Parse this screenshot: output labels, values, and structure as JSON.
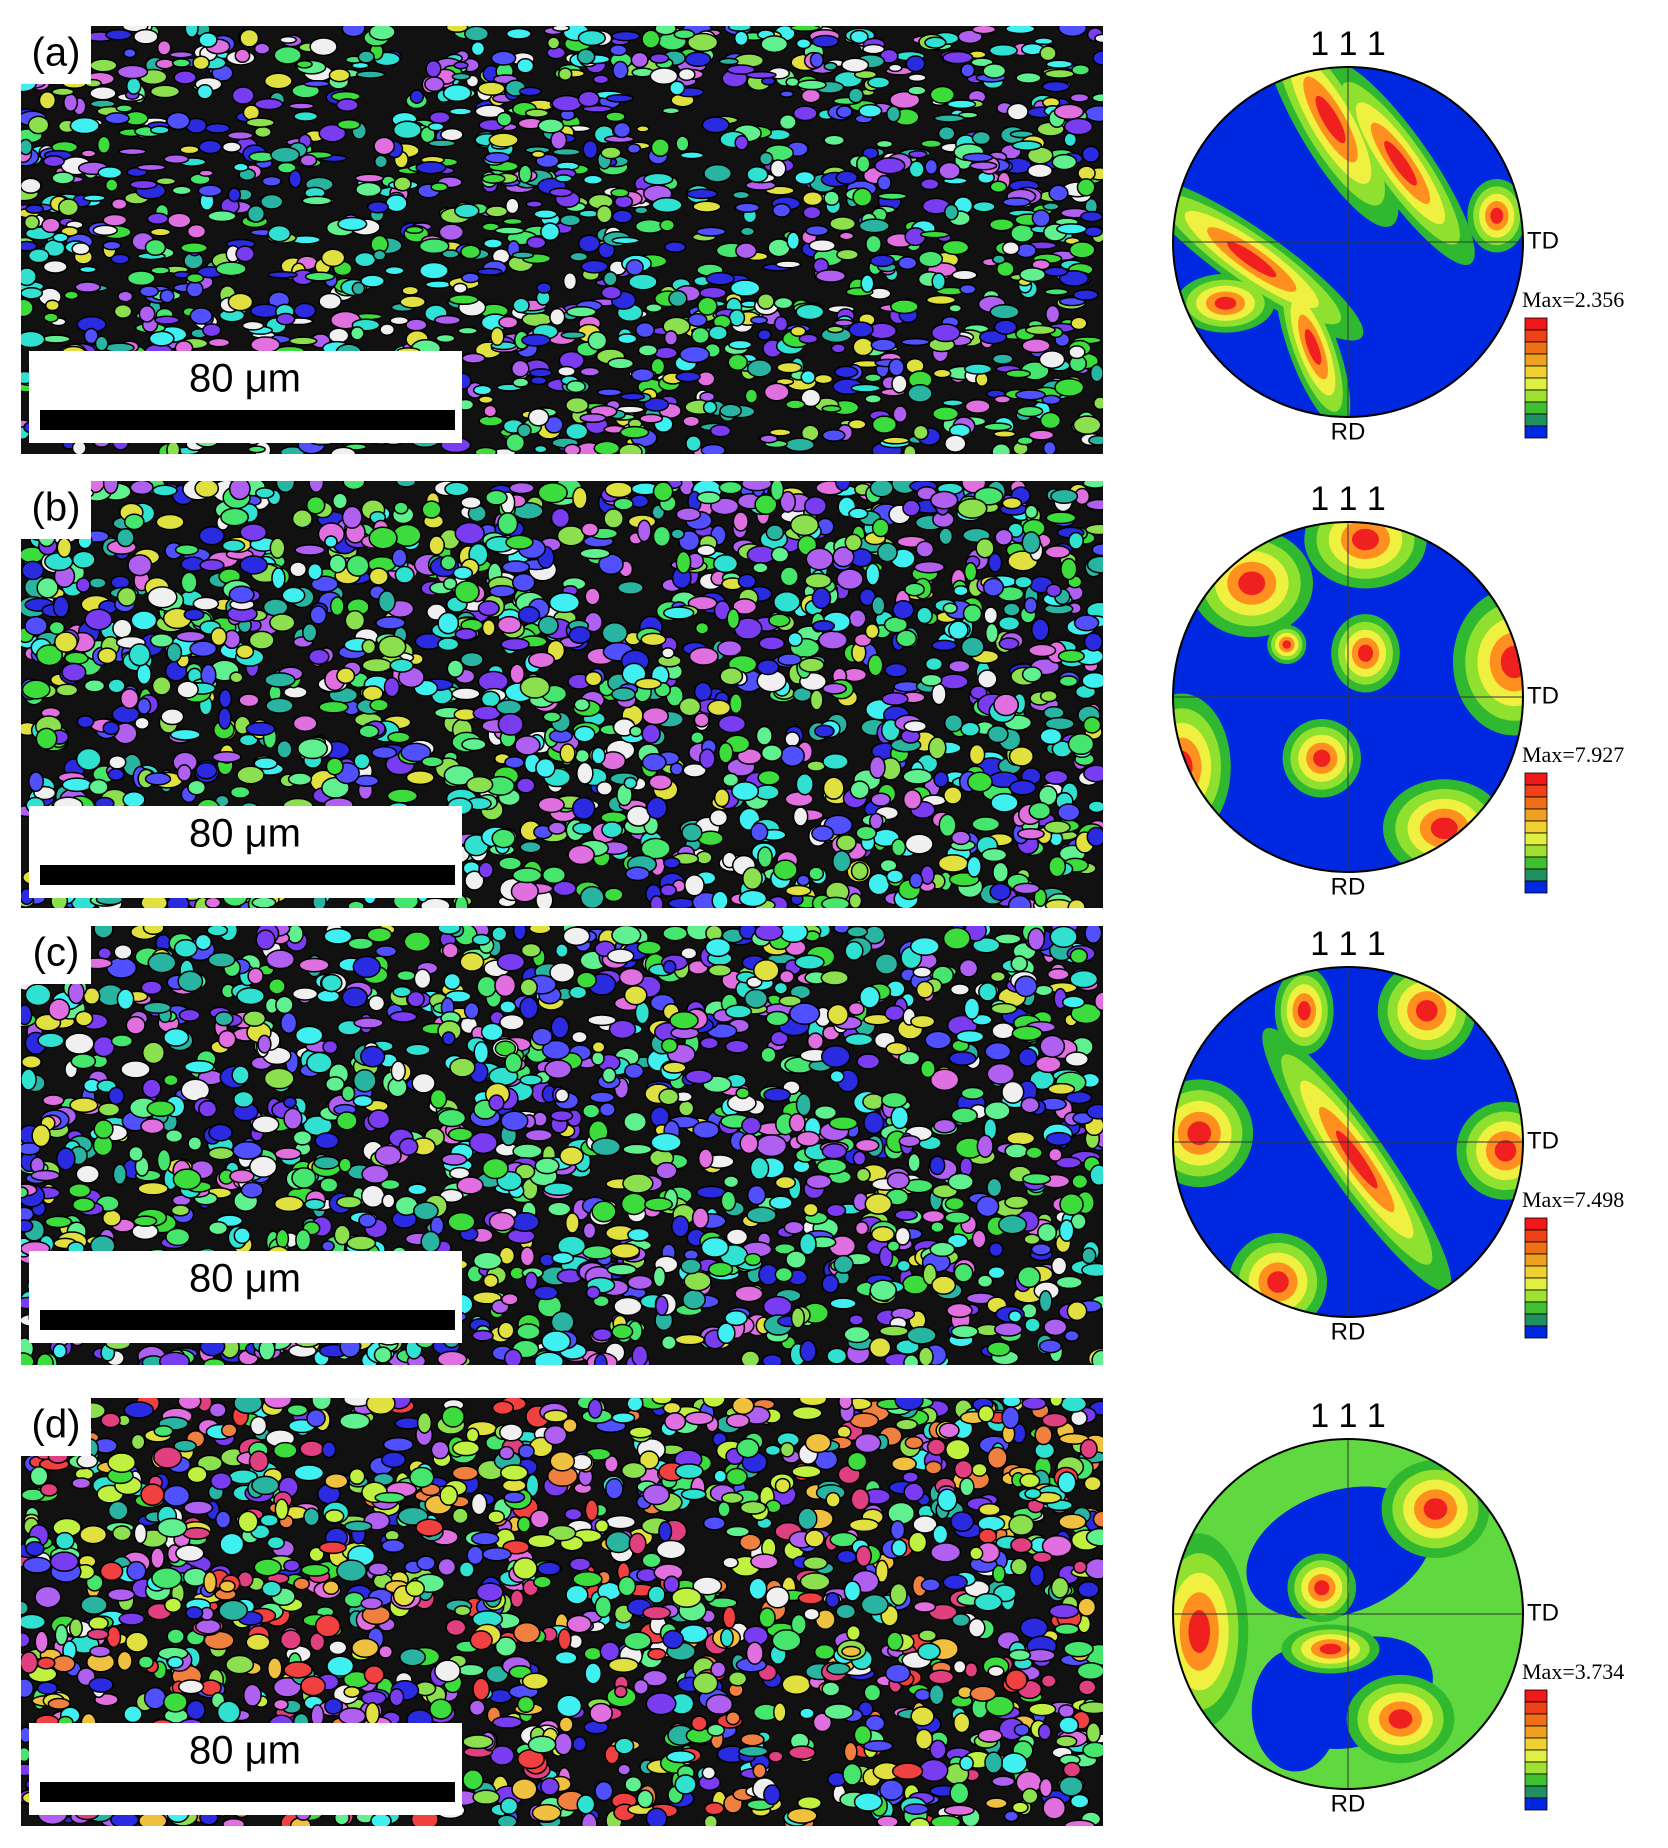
{
  "panels": [
    {
      "label": "(a)",
      "scale_bar": "80 μm",
      "pole_figure": {
        "title": "1 1 1",
        "td": "TD",
        "rd": "RD",
        "max": "Max=2.356"
      }
    },
    {
      "label": "(b)",
      "scale_bar": "80 μm",
      "pole_figure": {
        "title": "1 1 1",
        "td": "TD",
        "rd": "RD",
        "max": "Max=7.927"
      }
    },
    {
      "label": "(c)",
      "scale_bar": "80 μm",
      "pole_figure": {
        "title": "1 1 1",
        "td": "TD",
        "rd": "RD",
        "max": "Max=7.498"
      }
    },
    {
      "label": "(d)",
      "scale_bar": "80 μm",
      "pole_figure": {
        "title": "1 1 1",
        "td": "TD",
        "rd": "RD",
        "max": "Max=3.734"
      }
    }
  ]
}
